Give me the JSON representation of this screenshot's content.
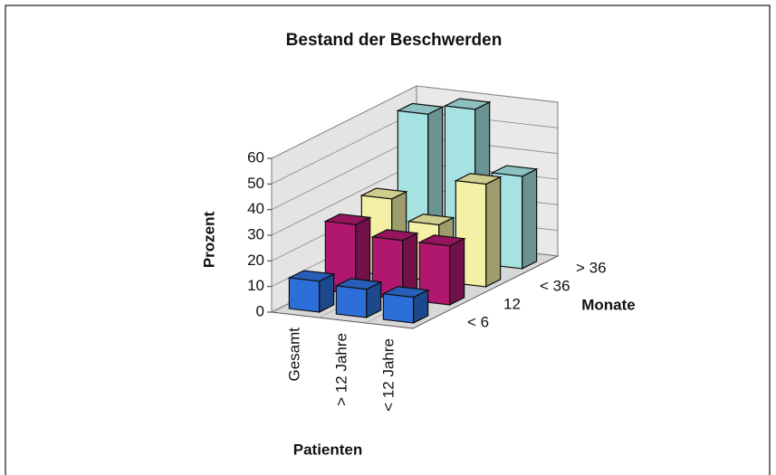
{
  "chart_data": {
    "type": "bar3d",
    "title": "Bestand der Beschwerden",
    "categories": [
      "Gesamt",
      "> 12 Jahre",
      "< 12 Jahre"
    ],
    "series": [
      {
        "name": "< 6",
        "color": "#2d6fd8",
        "values": [
          12,
          11,
          10
        ]
      },
      {
        "name": "12",
        "color": "#b01870",
        "values": [
          27,
          23,
          23
        ]
      },
      {
        "name": "< 36",
        "color": "#f4f0a6",
        "values": [
          30,
          22,
          40
        ]
      },
      {
        "name": "> 36",
        "color": "#a6e2e2",
        "values": [
          56,
          60,
          36
        ]
      }
    ],
    "ylim": [
      0,
      60
    ],
    "yticks": [
      0,
      10,
      20,
      30,
      40,
      50,
      60
    ],
    "ylabel": "Prozent",
    "xlabel": "Patienten",
    "zlabel": "Monate",
    "grid": true
  }
}
